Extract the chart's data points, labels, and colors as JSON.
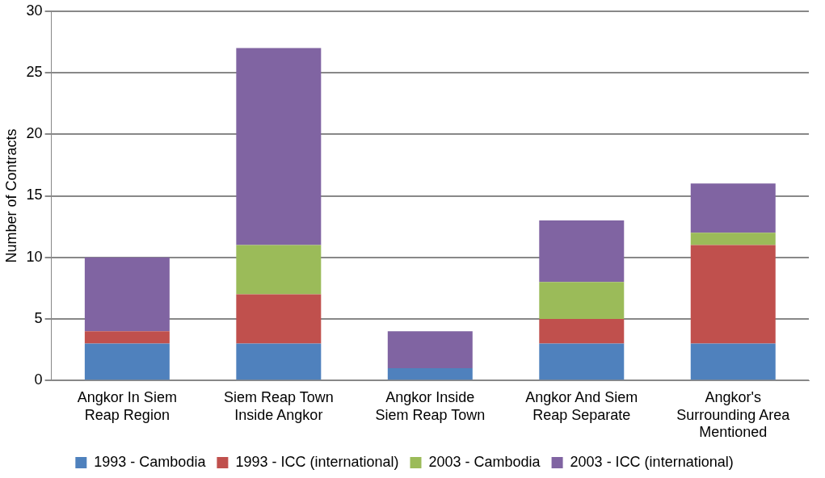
{
  "chart_data": {
    "type": "bar",
    "stacked": true,
    "ylabel": "Number of Contracts",
    "categories": [
      "Angkor In Siem Reap Region",
      "Siem Reap Town Inside Angkor",
      "Angkor Inside Siem Reap Town",
      "Angkor And Siem Reap Separate",
      "Angkor's Surrounding Area Mentioned"
    ],
    "series": [
      {
        "name": "1993 - Cambodia",
        "color": "#4f81bd",
        "values": [
          3,
          3,
          1,
          3,
          3
        ]
      },
      {
        "name": "1993 - ICC (international)",
        "color": "#c0504d",
        "values": [
          1,
          4,
          0,
          2,
          8
        ]
      },
      {
        "name": "2003 - Cambodia",
        "color": "#9bbb59",
        "values": [
          0,
          4,
          0,
          3,
          1
        ]
      },
      {
        "name": "2003 - ICC (international)",
        "color": "#8064a2",
        "values": [
          6,
          16,
          3,
          5,
          4
        ]
      }
    ],
    "ylim": [
      0,
      30
    ],
    "yticks": [
      0,
      5,
      10,
      15,
      20,
      25,
      30
    ],
    "grid": "y",
    "legend": "bottom"
  }
}
